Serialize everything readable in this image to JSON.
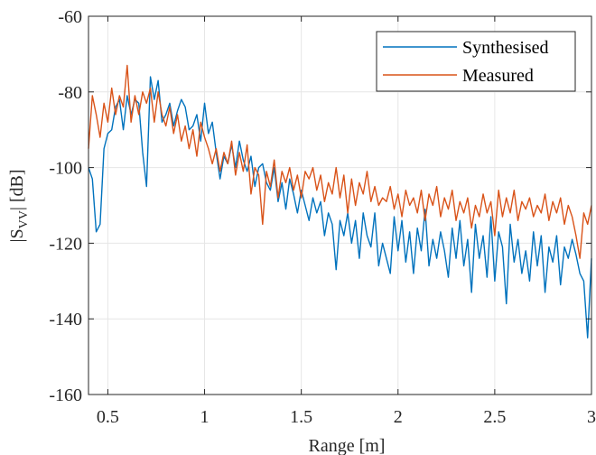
{
  "chart_data": {
    "type": "line",
    "xlabel": "Range [m]",
    "ylabel": {
      "base": "|S",
      "sub": "VV",
      "rest": "| [dB]"
    },
    "xlim": [
      0.4,
      3.0
    ],
    "ylim": [
      -160,
      -60
    ],
    "xticks": [
      0.5,
      1,
      1.5,
      2,
      2.5,
      3
    ],
    "xtick_labels": [
      "0.5",
      "1",
      "1.5",
      "2",
      "2.5",
      "3"
    ],
    "yticks": [
      -160,
      -140,
      -120,
      -100,
      -80,
      -60
    ],
    "ytick_labels": [
      "-160",
      "-140",
      "-120",
      "-100",
      "-80",
      "-60"
    ],
    "grid": true,
    "legend_position": "top-right",
    "series": [
      {
        "name": "Synthesised",
        "color": "#0072BD",
        "x": [
          0.4,
          0.42,
          0.44,
          0.46,
          0.48,
          0.5,
          0.52,
          0.54,
          0.56,
          0.58,
          0.6,
          0.62,
          0.64,
          0.66,
          0.68,
          0.7,
          0.72,
          0.74,
          0.76,
          0.78,
          0.8,
          0.82,
          0.84,
          0.86,
          0.88,
          0.9,
          0.92,
          0.94,
          0.96,
          0.98,
          1.0,
          1.02,
          1.04,
          1.06,
          1.08,
          1.1,
          1.12,
          1.14,
          1.16,
          1.18,
          1.2,
          1.22,
          1.24,
          1.26,
          1.28,
          1.3,
          1.32,
          1.34,
          1.36,
          1.38,
          1.4,
          1.42,
          1.44,
          1.46,
          1.48,
          1.5,
          1.52,
          1.54,
          1.56,
          1.58,
          1.6,
          1.62,
          1.64,
          1.66,
          1.68,
          1.7,
          1.72,
          1.74,
          1.76,
          1.78,
          1.8,
          1.82,
          1.84,
          1.86,
          1.88,
          1.9,
          1.92,
          1.94,
          1.96,
          1.98,
          2.0,
          2.02,
          2.04,
          2.06,
          2.08,
          2.1,
          2.12,
          2.14,
          2.16,
          2.18,
          2.2,
          2.22,
          2.24,
          2.26,
          2.28,
          2.3,
          2.32,
          2.34,
          2.36,
          2.38,
          2.4,
          2.42,
          2.44,
          2.46,
          2.48,
          2.5,
          2.52,
          2.54,
          2.56,
          2.58,
          2.6,
          2.62,
          2.64,
          2.66,
          2.68,
          2.7,
          2.72,
          2.74,
          2.76,
          2.78,
          2.8,
          2.82,
          2.84,
          2.86,
          2.88,
          2.9,
          2.92,
          2.94,
          2.96,
          2.98,
          3.0
        ],
        "y": [
          -100,
          -103,
          -117,
          -115,
          -95,
          -91,
          -90,
          -84,
          -82,
          -90,
          -81,
          -86,
          -82,
          -83,
          -96,
          -105,
          -76,
          -82,
          -77,
          -88,
          -86,
          -83,
          -89,
          -85,
          -82,
          -84,
          -90,
          -89,
          -86,
          -93,
          -83,
          -91,
          -88,
          -96,
          -103,
          -97,
          -99,
          -94,
          -100,
          -93,
          -98,
          -101,
          -97,
          -105,
          -100,
          -99,
          -104,
          -106,
          -100,
          -109,
          -104,
          -111,
          -103,
          -107,
          -112,
          -106,
          -110,
          -114,
          -108,
          -112,
          -109,
          -118,
          -112,
          -115,
          -127,
          -114,
          -118,
          -112,
          -120,
          -114,
          -124,
          -112,
          -118,
          -121,
          -112,
          -126,
          -120,
          -124,
          -128,
          -113,
          -122,
          -114,
          -125,
          -117,
          -128,
          -116,
          -122,
          -111,
          -126,
          -119,
          -124,
          -117,
          -122,
          -129,
          -116,
          -124,
          -114,
          -126,
          -119,
          -133,
          -115,
          -124,
          -118,
          -129,
          -113,
          -130,
          -117,
          -121,
          -136,
          -115,
          -125,
          -119,
          -128,
          -122,
          -130,
          -117,
          -126,
          -118,
          -133,
          -121,
          -125,
          -118,
          -131,
          -121,
          -124,
          -119,
          -123,
          -128,
          -130,
          -145,
          -124
        ]
      },
      {
        "name": "Measured",
        "color": "#D95319",
        "x": [
          0.4,
          0.42,
          0.44,
          0.46,
          0.48,
          0.5,
          0.52,
          0.54,
          0.56,
          0.58,
          0.6,
          0.62,
          0.64,
          0.66,
          0.68,
          0.7,
          0.72,
          0.74,
          0.76,
          0.78,
          0.8,
          0.82,
          0.84,
          0.86,
          0.88,
          0.9,
          0.92,
          0.94,
          0.96,
          0.98,
          1.0,
          1.02,
          1.04,
          1.06,
          1.08,
          1.1,
          1.12,
          1.14,
          1.16,
          1.18,
          1.2,
          1.22,
          1.24,
          1.26,
          1.28,
          1.3,
          1.32,
          1.34,
          1.36,
          1.38,
          1.4,
          1.42,
          1.44,
          1.46,
          1.48,
          1.5,
          1.52,
          1.54,
          1.56,
          1.58,
          1.6,
          1.62,
          1.64,
          1.66,
          1.68,
          1.7,
          1.72,
          1.74,
          1.76,
          1.78,
          1.8,
          1.82,
          1.84,
          1.86,
          1.88,
          1.9,
          1.92,
          1.94,
          1.96,
          1.98,
          2.0,
          2.02,
          2.04,
          2.06,
          2.08,
          2.1,
          2.12,
          2.14,
          2.16,
          2.18,
          2.2,
          2.22,
          2.24,
          2.26,
          2.28,
          2.3,
          2.32,
          2.34,
          2.36,
          2.38,
          2.4,
          2.42,
          2.44,
          2.46,
          2.48,
          2.5,
          2.52,
          2.54,
          2.56,
          2.58,
          2.6,
          2.62,
          2.64,
          2.66,
          2.68,
          2.7,
          2.72,
          2.74,
          2.76,
          2.78,
          2.8,
          2.82,
          2.84,
          2.86,
          2.88,
          2.9,
          2.92,
          2.94,
          2.96,
          2.98,
          3.0
        ],
        "y": [
          -95,
          -81,
          -86,
          -92,
          -83,
          -88,
          -79,
          -86,
          -81,
          -84,
          -73,
          -88,
          -81,
          -86,
          -80,
          -83,
          -79,
          -88,
          -80,
          -86,
          -89,
          -84,
          -91,
          -86,
          -93,
          -89,
          -95,
          -90,
          -97,
          -88,
          -92,
          -95,
          -99,
          -95,
          -101,
          -96,
          -99,
          -93,
          -102,
          -96,
          -101,
          -94,
          -107,
          -100,
          -102,
          -115,
          -101,
          -105,
          -98,
          -108,
          -101,
          -104,
          -100,
          -106,
          -102,
          -108,
          -101,
          -103,
          -100,
          -106,
          -102,
          -109,
          -104,
          -107,
          -100,
          -108,
          -102,
          -112,
          -103,
          -110,
          -104,
          -107,
          -101,
          -109,
          -105,
          -110,
          -108,
          -109,
          -105,
          -111,
          -107,
          -113,
          -106,
          -110,
          -108,
          -112,
          -106,
          -114,
          -107,
          -110,
          -105,
          -113,
          -108,
          -111,
          -106,
          -114,
          -109,
          -112,
          -108,
          -116,
          -110,
          -113,
          -107,
          -112,
          -109,
          -118,
          -106,
          -113,
          -108,
          -112,
          -106,
          -114,
          -109,
          -111,
          -108,
          -113,
          -110,
          -112,
          -107,
          -114,
          -109,
          -112,
          -108,
          -115,
          -110,
          -113,
          -118,
          -124,
          -112,
          -115,
          -110
        ]
      }
    ]
  }
}
